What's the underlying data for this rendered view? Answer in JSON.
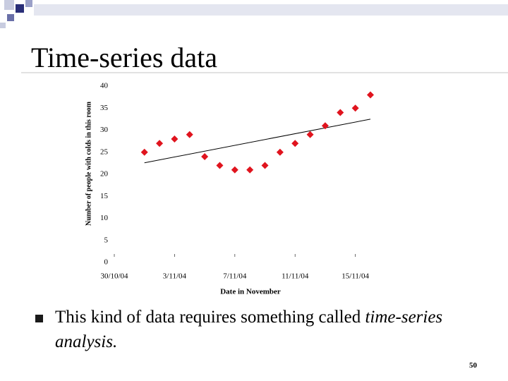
{
  "title": "Time-series data",
  "bullet": {
    "text": "This kind of data requires something called ",
    "emphasis": "time-series analysis."
  },
  "page_number": "50",
  "chart_data": {
    "type": "scatter",
    "x_label": "Date in November",
    "y_label": "Number of people with colds in this room",
    "x": [
      "2004-11-01",
      "2004-11-02",
      "2004-11-03",
      "2004-11-04",
      "2004-11-05",
      "2004-11-06",
      "2004-11-07",
      "2004-11-08",
      "2004-11-09",
      "2004-11-10",
      "2004-11-11",
      "2004-11-12",
      "2004-11-13",
      "2004-11-14",
      "2004-11-15",
      "2004-11-16"
    ],
    "values": [
      25,
      27,
      28,
      29,
      24,
      22,
      21,
      21,
      22,
      25,
      27,
      29,
      31,
      34,
      35,
      38
    ],
    "color": "#e0141e",
    "trendline": {
      "x": [
        "2004-11-01",
        "2004-11-16"
      ],
      "values": [
        22.6,
        32.5
      ]
    },
    "xlim": [
      "2004-10-30",
      "2004-11-16"
    ],
    "xticks": [
      {
        "value": "2004-10-30",
        "label": "30/10/04"
      },
      {
        "value": "2004-11-03",
        "label": "3/11/04"
      },
      {
        "value": "2004-11-07",
        "label": "7/11/04"
      },
      {
        "value": "2004-11-11",
        "label": "11/11/04"
      },
      {
        "value": "2004-11-15",
        "label": "15/11/04"
      }
    ],
    "ylim": [
      0,
      40
    ],
    "yticks": [
      0,
      5,
      10,
      15,
      20,
      25,
      30,
      35,
      40
    ]
  }
}
